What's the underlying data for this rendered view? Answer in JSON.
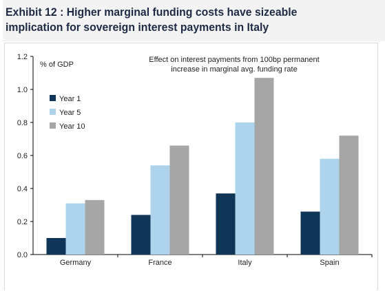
{
  "exhibit": {
    "title": "Exhibit 12 : Higher marginal funding costs have sizeable implication for sovereign interest payments in Italy"
  },
  "chart_data": {
    "type": "bar",
    "title": "",
    "annotation": "Effect on interest payments from 100bp permanent increase in marginal avg. funding rate",
    "ylabel": "% of GDP",
    "xlabel": "",
    "ylim": [
      0,
      1.2
    ],
    "yticks": [
      "0.0",
      "0.2",
      "0.4",
      "0.6",
      "0.8",
      "1.0",
      "1.2"
    ],
    "categories": [
      "Germany",
      "France",
      "Italy",
      "Spain"
    ],
    "series": [
      {
        "name": "Year 1",
        "color": "#0f3557",
        "values": [
          0.1,
          0.24,
          0.37,
          0.26
        ]
      },
      {
        "name": "Year 5",
        "color": "#add4ec",
        "values": [
          0.31,
          0.54,
          0.8,
          0.58
        ]
      },
      {
        "name": "Year 10",
        "color": "#a6a6a6",
        "values": [
          0.33,
          0.66,
          1.07,
          0.72
        ]
      }
    ],
    "legend_position": "top-left",
    "grid": false
  }
}
